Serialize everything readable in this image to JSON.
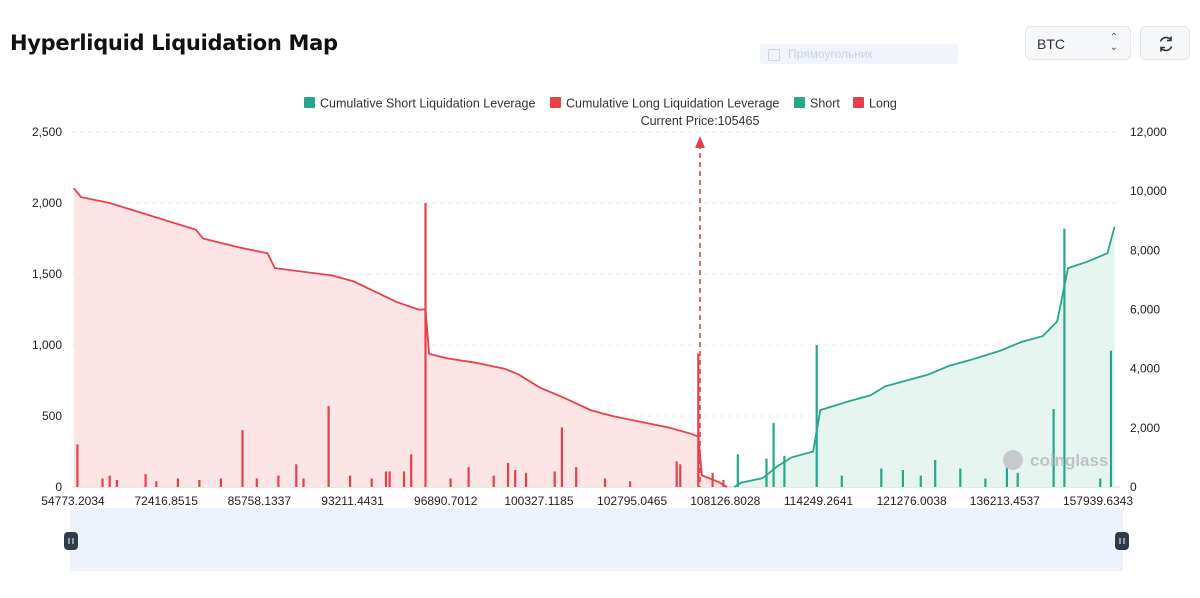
{
  "page": {
    "title": "Hyperliquid Liquidation Map",
    "ghost_placeholder": "Прямоугольник"
  },
  "controls": {
    "symbol": "BTC",
    "symbol_chevron": "⌃⌄",
    "refresh_icon": "refresh-icon"
  },
  "colors": {
    "short": "#26a68c",
    "long": "#e8404b",
    "short_fill": "#e6f5f0",
    "long_fill": "#fde5e6"
  },
  "watermark": "coinglass",
  "chart_data": {
    "type": "bar",
    "legend": [
      {
        "name": "Cumulative Short Liquidation Leverage",
        "color": "#26a68c"
      },
      {
        "name": "Cumulative Long Liquidation Leverage",
        "color": "#e8404b"
      },
      {
        "name": "Short",
        "color": "#26a68c"
      },
      {
        "name": "Long",
        "color": "#e8404b"
      }
    ],
    "current_price_label": "Current Price:105465",
    "current_price": 105465,
    "x_tick_labels": [
      "54773.2034",
      "72416.8515",
      "85758.1337",
      "93211.4431",
      "96890.7012",
      "100327.1185",
      "102795.0465",
      "108126.8028",
      "114249.2641",
      "121276.0038",
      "136213.4537",
      "157939.6343"
    ],
    "y_left": {
      "ticks": [
        "0",
        "500",
        "1,000",
        "1,500",
        "2,000",
        "2,500"
      ],
      "range": [
        0,
        2500
      ]
    },
    "y_right": {
      "ticks": [
        "0",
        "2,000",
        "4,000",
        "6,000",
        "8,000",
        "10,000",
        "12,000"
      ],
      "range": [
        0,
        12000
      ]
    },
    "grid": "horizontal dashed",
    "long_bars": [
      {
        "i": 1,
        "v": 300
      },
      {
        "i": 8,
        "v": 60
      },
      {
        "i": 10,
        "v": 80
      },
      {
        "i": 12,
        "v": 50
      },
      {
        "i": 20,
        "v": 90
      },
      {
        "i": 23,
        "v": 40
      },
      {
        "i": 29,
        "v": 60
      },
      {
        "i": 35,
        "v": 50
      },
      {
        "i": 41,
        "v": 60
      },
      {
        "i": 47,
        "v": 400
      },
      {
        "i": 51,
        "v": 60
      },
      {
        "i": 57,
        "v": 80
      },
      {
        "i": 62,
        "v": 160
      },
      {
        "i": 64,
        "v": 60
      },
      {
        "i": 71,
        "v": 570
      },
      {
        "i": 77,
        "v": 80
      },
      {
        "i": 83,
        "v": 60
      },
      {
        "i": 87,
        "v": 110
      },
      {
        "i": 88,
        "v": 110
      },
      {
        "i": 92,
        "v": 110
      },
      {
        "i": 94,
        "v": 230
      },
      {
        "i": 98,
        "v": 2000
      },
      {
        "i": 105,
        "v": 60
      },
      {
        "i": 110,
        "v": 140
      },
      {
        "i": 117,
        "v": 80
      },
      {
        "i": 121,
        "v": 170
      },
      {
        "i": 123,
        "v": 120
      },
      {
        "i": 126,
        "v": 100
      },
      {
        "i": 134,
        "v": 110
      },
      {
        "i": 136,
        "v": 420
      },
      {
        "i": 140,
        "v": 140
      },
      {
        "i": 148,
        "v": 60
      },
      {
        "i": 155,
        "v": 40
      },
      {
        "i": 168,
        "v": 180
      },
      {
        "i": 169,
        "v": 160
      },
      {
        "i": 174,
        "v": 940
      },
      {
        "i": 178,
        "v": 100
      },
      {
        "i": 181,
        "v": 50
      }
    ],
    "short_bars": [
      {
        "i": 185,
        "v": 230
      },
      {
        "i": 193,
        "v": 200
      },
      {
        "i": 195,
        "v": 450
      },
      {
        "i": 198,
        "v": 220
      },
      {
        "i": 207,
        "v": 1000
      },
      {
        "i": 214,
        "v": 80
      },
      {
        "i": 225,
        "v": 130
      },
      {
        "i": 231,
        "v": 120
      },
      {
        "i": 236,
        "v": 80
      },
      {
        "i": 240,
        "v": 190
      },
      {
        "i": 247,
        "v": 130
      },
      {
        "i": 254,
        "v": 60
      },
      {
        "i": 260,
        "v": 200
      },
      {
        "i": 263,
        "v": 100
      },
      {
        "i": 273,
        "v": 550
      },
      {
        "i": 276,
        "v": 1820
      },
      {
        "i": 286,
        "v": 60
      },
      {
        "i": 289,
        "v": 960
      }
    ],
    "cumulative_long": [
      [
        0,
        10100
      ],
      [
        2,
        9800
      ],
      [
        10,
        9600
      ],
      [
        18,
        9300
      ],
      [
        26,
        9000
      ],
      [
        34,
        8700
      ],
      [
        36,
        8400
      ],
      [
        46,
        8100
      ],
      [
        54,
        7900
      ],
      [
        56,
        7400
      ],
      [
        72,
        7150
      ],
      [
        78,
        6950
      ],
      [
        84,
        6600
      ],
      [
        90,
        6250
      ],
      [
        96,
        6000
      ],
      [
        98,
        6000
      ],
      [
        99,
        4500
      ],
      [
        104,
        4350
      ],
      [
        112,
        4200
      ],
      [
        120,
        4000
      ],
      [
        124,
        3800
      ],
      [
        130,
        3350
      ],
      [
        136,
        3050
      ],
      [
        144,
        2600
      ],
      [
        150,
        2400
      ],
      [
        158,
        2200
      ],
      [
        166,
        2000
      ],
      [
        172,
        1800
      ],
      [
        174,
        1700
      ],
      [
        175,
        400
      ],
      [
        180,
        150
      ],
      [
        182,
        0
      ]
    ],
    "cumulative_short": [
      [
        184,
        0
      ],
      [
        186,
        150
      ],
      [
        192,
        300
      ],
      [
        196,
        700
      ],
      [
        200,
        1000
      ],
      [
        206,
        1200
      ],
      [
        208,
        2600
      ],
      [
        216,
        2900
      ],
      [
        222,
        3100
      ],
      [
        226,
        3400
      ],
      [
        232,
        3600
      ],
      [
        238,
        3800
      ],
      [
        244,
        4100
      ],
      [
        250,
        4300
      ],
      [
        258,
        4600
      ],
      [
        264,
        4900
      ],
      [
        270,
        5100
      ],
      [
        274,
        5600
      ],
      [
        277,
        7400
      ],
      [
        282,
        7600
      ],
      [
        288,
        7900
      ],
      [
        290,
        8800
      ]
    ]
  }
}
